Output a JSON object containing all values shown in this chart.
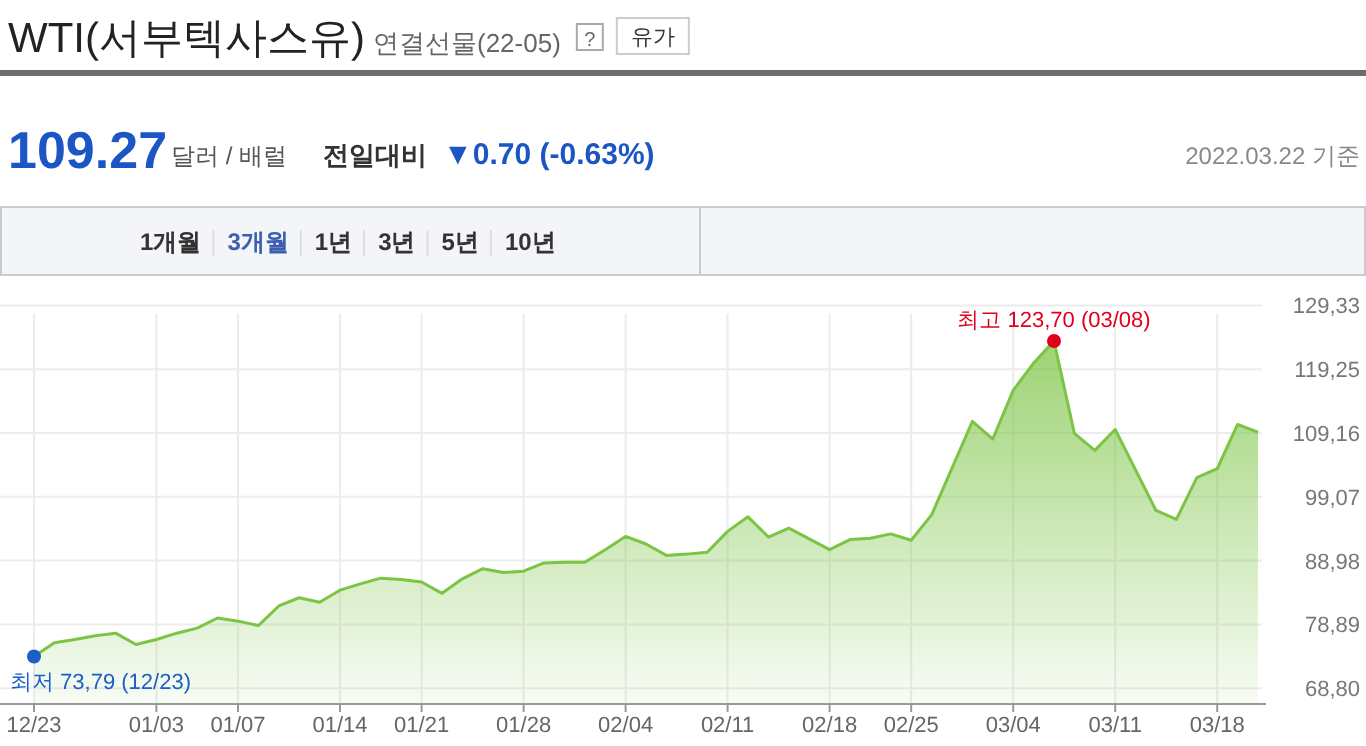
{
  "chart_data": {
    "type": "area",
    "title": "WTI(서부텍사스유)",
    "subtitle": "연결선물(22-05)",
    "annotations": [
      "?",
      "유가",
      "109.27",
      "달러 / 배럴",
      "전일대비",
      "▼0.70 (-0.63%)",
      "2022.03.22 기준",
      "1개월",
      "3개월",
      "1년",
      "3년",
      "5년",
      "10년",
      "최고 123,70 (03/08)",
      {
        "text": "최저 73,79 (12/23)",
        "x": "12/23",
        "y": 73.8
      }
    ],
    "categories": [
      "12/23",
      null,
      null,
      null,
      null,
      null,
      "01/03",
      null,
      null,
      null,
      "01/07",
      null,
      null,
      null,
      null,
      "01/14",
      null,
      null,
      null,
      "01/21",
      null,
      null,
      null,
      null,
      "01/28",
      null,
      null,
      null,
      null,
      "02/04",
      null,
      null,
      null,
      null,
      "02/11",
      null,
      null,
      null,
      null,
      "02/18",
      null,
      null,
      null,
      "02/25",
      null,
      null,
      null,
      null,
      "03/04",
      null,
      null,
      null,
      null,
      "03/11",
      null,
      null,
      null,
      null,
      "03/18",
      null,
      null
    ],
    "series": [
      {
        "color": "#7cc444",
        "values": [
          73.8,
          76.0,
          76.5,
          77.1,
          77.5,
          75.7,
          76.5,
          77.5,
          78.3,
          79.9,
          79.4,
          78.7,
          81.8,
          83.1,
          82.4,
          84.3,
          85.3,
          86.2,
          86.0,
          85.6,
          83.8,
          86.1,
          87.7,
          87.1,
          87.3,
          88.6,
          88.7,
          88.7,
          90.7,
          92.8,
          91.6,
          89.8,
          90.0,
          90.3,
          93.6,
          95.9,
          92.7,
          94.1,
          92.4,
          90.7,
          92.3,
          92.5,
          93.2,
          92.2,
          96.2,
          103.6,
          111.0,
          108.2,
          115.9,
          120.2,
          123.7,
          109.1,
          106.4,
          109.7,
          103.3,
          96.9,
          95.5,
          102.1,
          103.5,
          110.5,
          109.3
        ]
      }
    ],
    "ylim": [
      66.3,
      129.33
    ],
    "yticks": [
      {
        "value": 68.8,
        "label": "68,80"
      },
      {
        "value": 78.89,
        "label": "78,89"
      },
      {
        "value": 88.98,
        "label": "88,98"
      },
      {
        "value": 99.07,
        "label": "99,07"
      },
      {
        "value": 109.16,
        "label": "109,16"
      },
      {
        "value": 119.25,
        "label": "119,25"
      },
      {
        "value": 129.33,
        "label": "129,33"
      }
    ],
    "grid": true
  }
}
